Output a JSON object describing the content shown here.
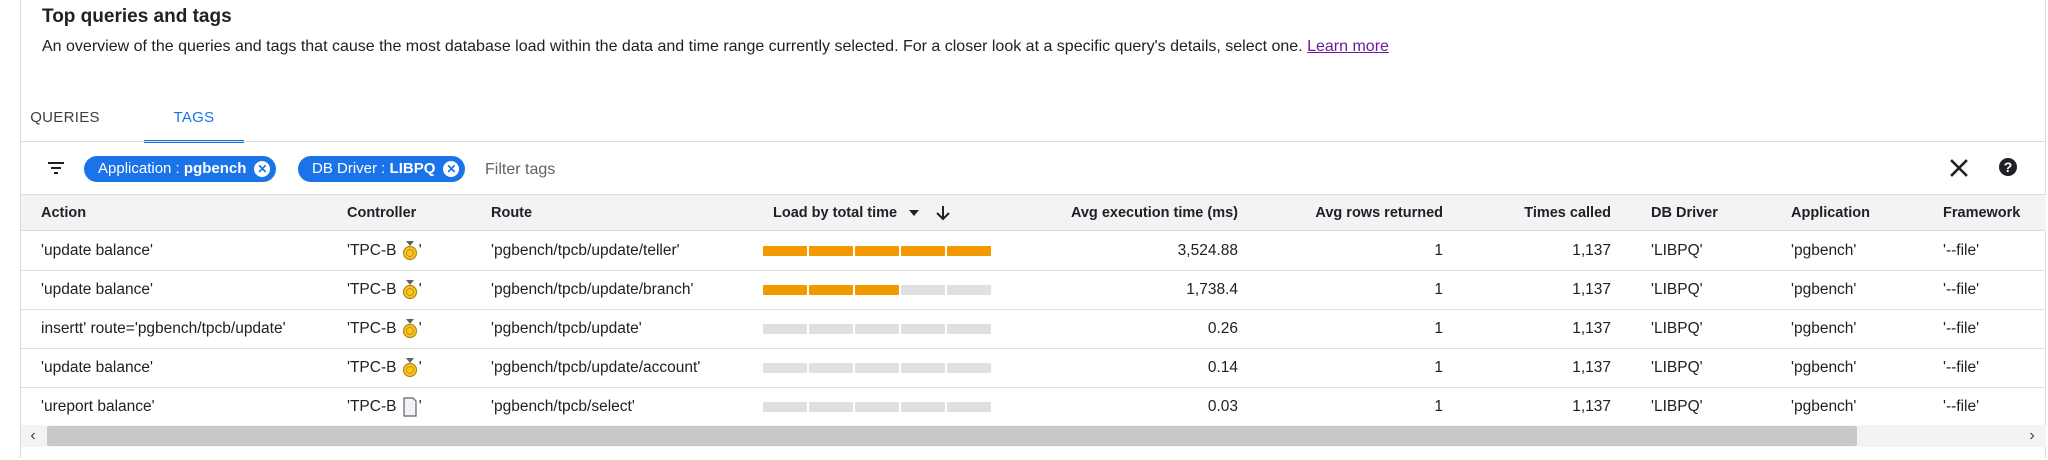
{
  "header": {
    "title": "Top queries and tags",
    "description": "An overview of the queries and tags that cause the most database load within the data and time range currently selected. For a closer look at a specific query's details, select one.",
    "learn_more": "Learn more"
  },
  "tabs": [
    {
      "label": "QUERIES",
      "active": false
    },
    {
      "label": "TAGS",
      "active": true
    }
  ],
  "filter": {
    "chips": [
      {
        "key": "Application",
        "value": "pgbench"
      },
      {
        "key": "DB Driver",
        "value": "LIBPQ"
      }
    ],
    "placeholder": "Filter tags",
    "icons": [
      "filter-list-icon",
      "close-icon",
      "help-icon"
    ]
  },
  "table": {
    "columns": [
      "Action",
      "Controller",
      "Route",
      "Load by total time",
      "Avg execution time (ms)",
      "Avg rows returned",
      "Times called",
      "DB Driver",
      "Application",
      "Framework"
    ],
    "sort": {
      "column": "Load by total time",
      "direction": "descending"
    },
    "rows": [
      {
        "action": "'update balance'",
        "controller_prefix": "'TPC-B ",
        "controller_icon": "medal-icon",
        "controller_suffix": "'",
        "route": "'pgbench/tpcb/update/teller'",
        "load": 1.0,
        "avg_exec": "3,524.88",
        "avg_rows": "1",
        "times_called": "1,137",
        "db_driver": "'LIBPQ'",
        "application": "'pgbench'",
        "framework": "'--file'"
      },
      {
        "action": "'update balance'",
        "controller_prefix": "'TPC-B ",
        "controller_icon": "medal-icon",
        "controller_suffix": "'",
        "route": "'pgbench/tpcb/update/branch'",
        "load": 0.5,
        "avg_exec": "1,738.4",
        "avg_rows": "1",
        "times_called": "1,137",
        "db_driver": "'LIBPQ'",
        "application": "'pgbench'",
        "framework": "'--file'"
      },
      {
        "action": "insertt' route='pgbench/tpcb/update'",
        "controller_prefix": "'TPC-B ",
        "controller_icon": "medal-icon",
        "controller_suffix": "'",
        "route": "'pgbench/tpcb/update'",
        "load": 0.0,
        "avg_exec": "0.26",
        "avg_rows": "1",
        "times_called": "1,137",
        "db_driver": "'LIBPQ'",
        "application": "'pgbench'",
        "framework": "'--file'"
      },
      {
        "action": "'update balance'",
        "controller_prefix": "'TPC-B ",
        "controller_icon": "medal-icon",
        "controller_suffix": "'",
        "route": "'pgbench/tpcb/update/account'",
        "load": 0.0,
        "avg_exec": "0.14",
        "avg_rows": "1",
        "times_called": "1,137",
        "db_driver": "'LIBPQ'",
        "application": "'pgbench'",
        "framework": "'--file'"
      },
      {
        "action": "'ureport balance'",
        "controller_prefix": "'TPC-B ",
        "controller_icon": "document-icon",
        "controller_suffix": "'",
        "route": "'pgbench/tpcb/select'",
        "load": 0.0,
        "avg_exec": "0.03",
        "avg_rows": "1",
        "times_called": "1,137",
        "db_driver": "'LIBPQ'",
        "application": "'pgbench'",
        "framework": "'--file'"
      }
    ]
  },
  "colors": {
    "accent": "#1a73e8",
    "bar_fill": "#f29900",
    "bar_empty": "#e0e0e0",
    "link": "#6a1b9a",
    "header_bg": "#f1f3f4"
  }
}
